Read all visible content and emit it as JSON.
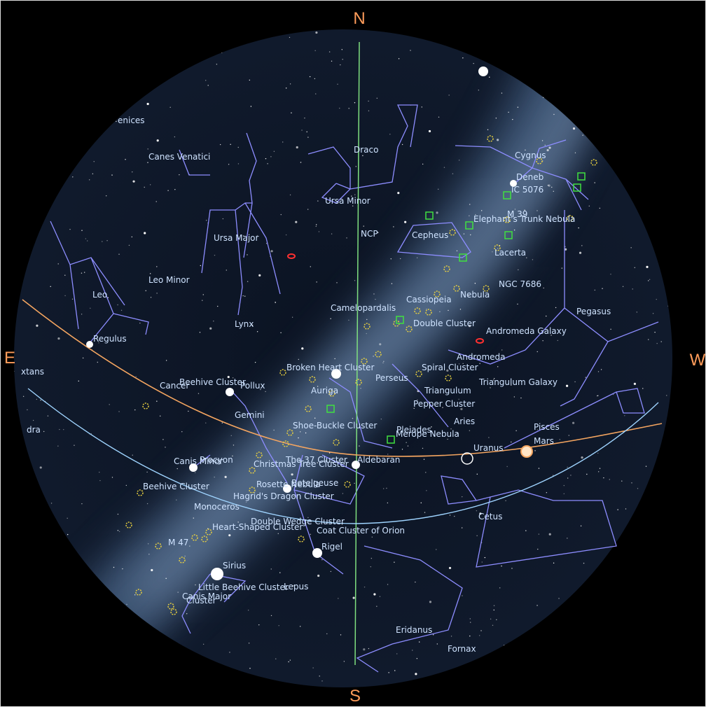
{
  "compass": {
    "north": "N",
    "south": "S",
    "east": "E",
    "west": "W"
  },
  "labels": [
    "enices",
    "Canes Venatici",
    "Draco",
    "Cygnus",
    "Deneb",
    "IC 5076",
    "Ursa Minor",
    "M 39",
    "Elephant's Trunk Nebula",
    "NCP",
    "Cepheus",
    "Ursa Major",
    "Lacerta",
    "Leo Minor",
    "NGC 7686",
    "Leo",
    "Nebula",
    "Cassiopeia",
    "Camelopardalis",
    "Pegasus",
    "Double Cluster",
    "Lynx",
    "Andromeda Galaxy",
    "Regulus",
    "Andromeda",
    "Broken Heart Cluster",
    "Spiral Cluster",
    "Perseus",
    "Triangulum Galaxy",
    "xtans",
    "Cancer",
    "Beehive Cluster",
    "Pollux",
    "Auriga",
    "Triangulum",
    "Pepper Cluster",
    "Gemini",
    "Shoe-Buckle Cluster",
    "Aries",
    "Pisces",
    "dra",
    "Pleiades",
    "Merope Nebula",
    "Mars",
    "Uranus",
    "Procyon",
    "Canis Minor",
    "The 37 Cluster",
    "Aldebaran",
    "Christmas Tree Cluster",
    "Beehive Cluster",
    "Rosette Nebula",
    "Betelgeuse",
    "Hagrid's Dragon Cluster",
    "Monoceros",
    "Double Wedge Cluster",
    "Heart-Shaped Cluster",
    "Coat Cluster of Orion",
    "Cetus",
    "M 47",
    "Rigel",
    "Sirius",
    "Little Beehive Cluster",
    "Lepus",
    "Canis Major",
    "Cluster",
    "Eridanus",
    "Fornax"
  ]
}
